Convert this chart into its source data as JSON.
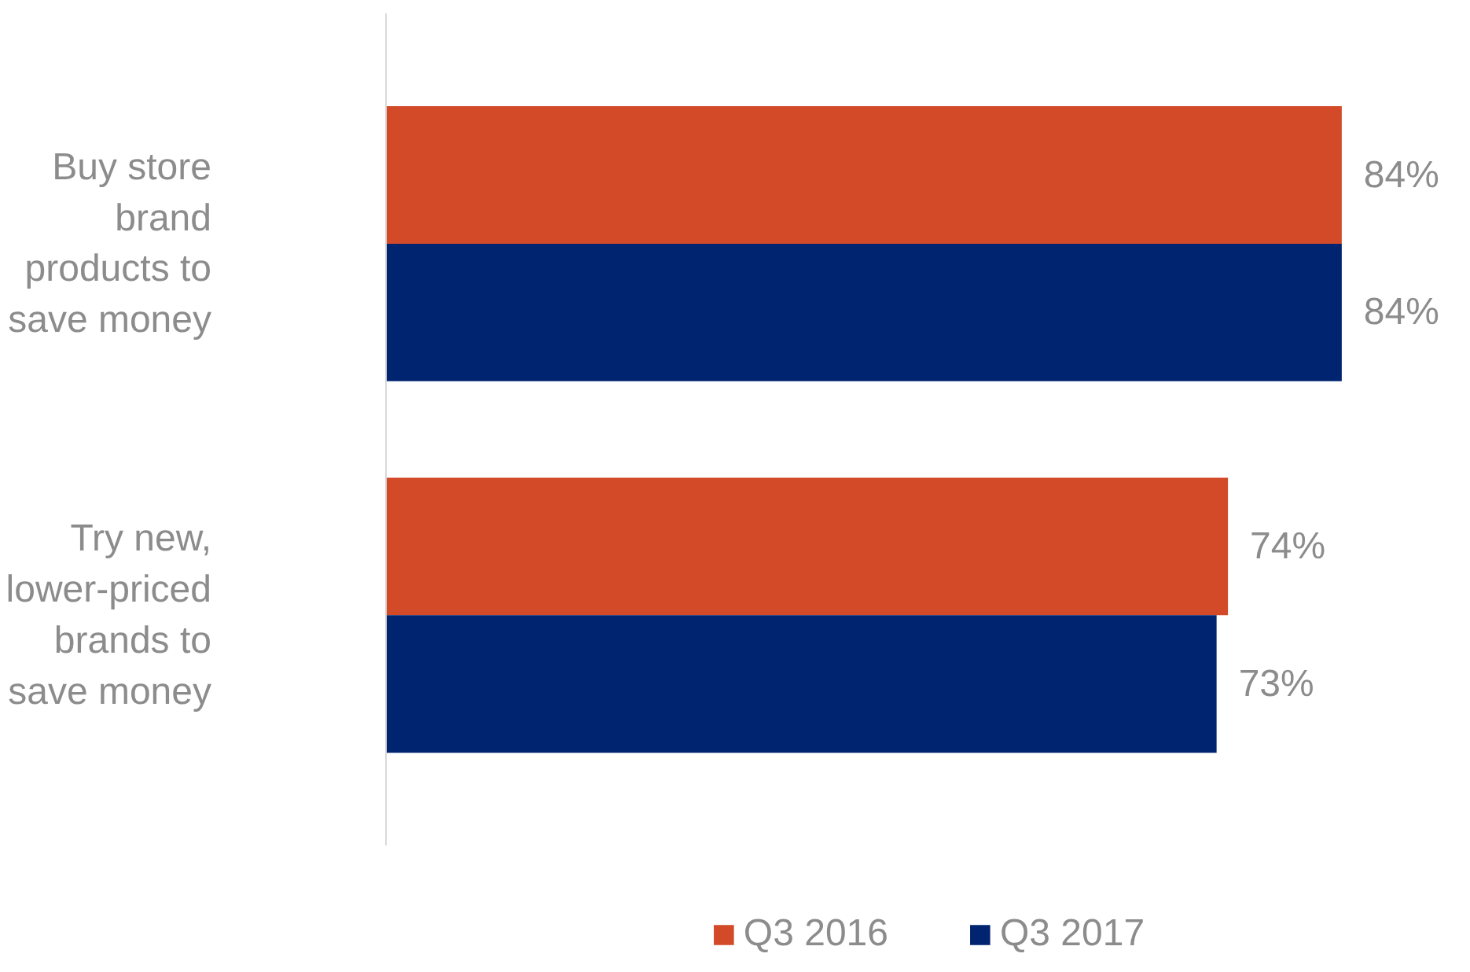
{
  "chart_data": {
    "type": "bar",
    "orientation": "horizontal",
    "categories": [
      "Buy store brand products to save money",
      "Try new, lower-priced brands to save money"
    ],
    "series": [
      {
        "name": "Q3 2016",
        "color": "#d34a29",
        "values": [
          84,
          74
        ],
        "value_labels": [
          "84%",
          "74%"
        ]
      },
      {
        "name": "Q3 2017",
        "color": "#00246f",
        "values": [
          84,
          73
        ],
        "value_labels": [
          "84%",
          "73%"
        ]
      }
    ],
    "legend": "bottom",
    "grid": false,
    "tick_labels": "y"
  }
}
